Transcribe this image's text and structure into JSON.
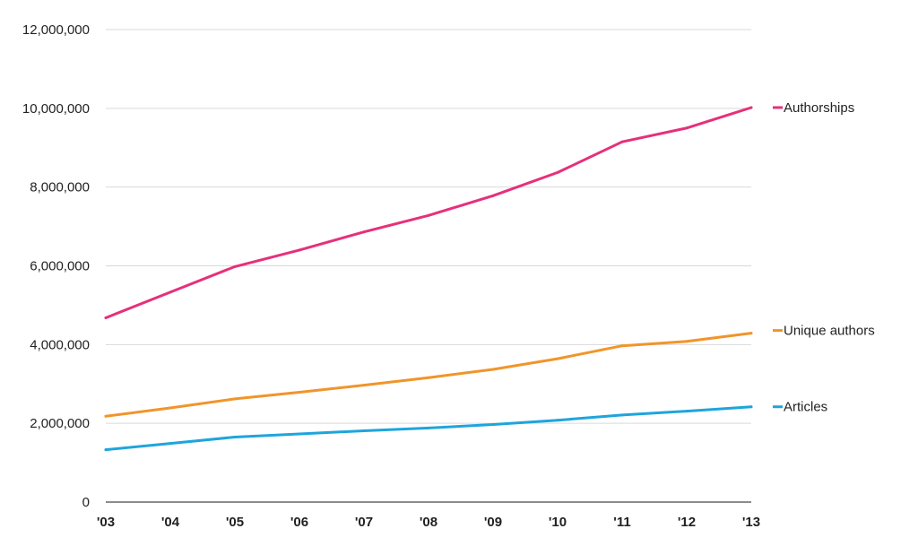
{
  "chart_data": {
    "type": "line",
    "title": "",
    "xlabel": "",
    "ylabel": "",
    "categories": [
      "'03",
      "'04",
      "'05",
      "'06",
      "'07",
      "'08",
      "'09",
      "'10",
      "'11",
      "'12",
      "'13"
    ],
    "yticks": [
      "0",
      "2,000,000",
      "4,000,000",
      "6,000,000",
      "8,000,000",
      "10,000,000",
      "12,000,000"
    ],
    "ylim": [
      0,
      12000000
    ],
    "grid": true,
    "legend": "right",
    "series": [
      {
        "name": "Authorships",
        "color": "#e6307a",
        "values": [
          4680000,
          5330000,
          5980000,
          6400000,
          6860000,
          7280000,
          7780000,
          8370000,
          9150000,
          9500000,
          10020000
        ]
      },
      {
        "name": "Unique authors",
        "color": "#f0952a",
        "values": [
          2180000,
          2390000,
          2620000,
          2790000,
          2970000,
          3160000,
          3370000,
          3640000,
          3970000,
          4080000,
          4290000
        ]
      },
      {
        "name": "Articles",
        "color": "#1ea5dc",
        "values": [
          1330000,
          1490000,
          1650000,
          1730000,
          1810000,
          1880000,
          1970000,
          2080000,
          2210000,
          2310000,
          2420000
        ]
      }
    ]
  }
}
